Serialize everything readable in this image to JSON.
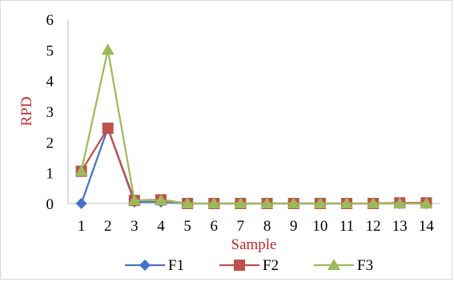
{
  "chart_data": {
    "type": "line",
    "xlabel": "Sample",
    "ylabel": "RPD",
    "axis_title_color": "#c0282e",
    "x": [
      1,
      2,
      3,
      4,
      5,
      6,
      7,
      8,
      9,
      10,
      11,
      12,
      13,
      14
    ],
    "ylim": [
      0,
      6
    ],
    "yticks": [
      0,
      1,
      2,
      3,
      4,
      5,
      6
    ],
    "grid": false,
    "legend_position": "bottom",
    "series": [
      {
        "name": "F1",
        "color": "#4472c4",
        "marker": "diamond",
        "values": [
          0,
          2.45,
          0.05,
          0.05,
          0,
          0,
          0,
          0,
          0,
          0,
          0,
          0,
          0,
          0
        ]
      },
      {
        "name": "F2",
        "color": "#c0504d",
        "marker": "square",
        "values": [
          1.05,
          2.45,
          0.1,
          0.12,
          0,
          0,
          0,
          0,
          0,
          0,
          0,
          0,
          0.02,
          0.02
        ]
      },
      {
        "name": "F3",
        "color": "#9bbb59",
        "marker": "triangle",
        "values": [
          1.05,
          5.0,
          0.1,
          0.1,
          0,
          0,
          0,
          0,
          0,
          0,
          0,
          0,
          0,
          0
        ]
      }
    ]
  }
}
